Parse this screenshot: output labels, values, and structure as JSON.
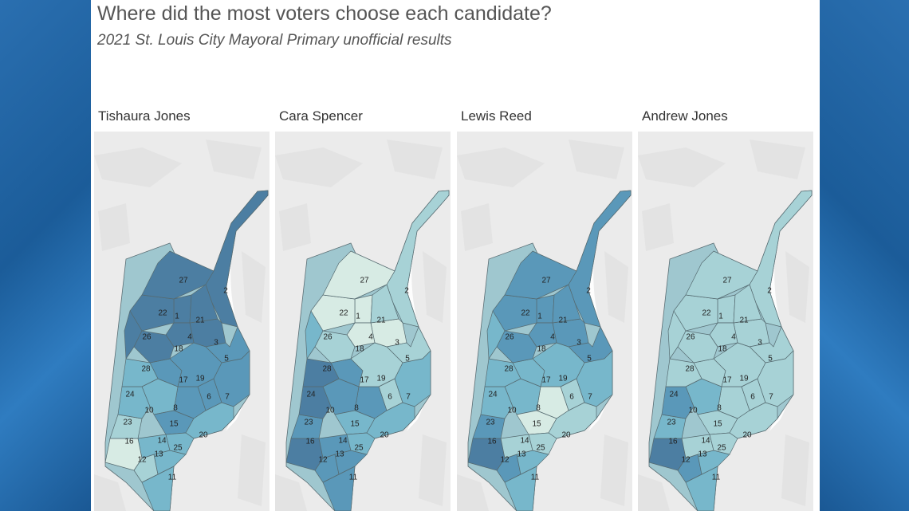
{
  "title": "Where did the most voters choose each candidate?",
  "subtitle": "2021 St. Louis City Mayoral Primary unofficial results",
  "palette": [
    "#d7ebe4",
    "#a7d2d6",
    "#77b7cb",
    "#5a98b9",
    "#4c7ea2"
  ],
  "ward_labels": [
    "1",
    "2",
    "3",
    "4",
    "5",
    "6",
    "7",
    "8",
    "10",
    "11",
    "12",
    "13",
    "14",
    "15",
    "16",
    "17",
    "18",
    "19",
    "20",
    "21",
    "22",
    "23",
    "24",
    "25",
    "26",
    "27",
    "28"
  ],
  "candidates": [
    {
      "name": "Tishaura Jones",
      "levels": {
        "1": 4,
        "2": 4,
        "3": 4,
        "4": 4,
        "5": 3,
        "6": 3,
        "7": 3,
        "8": 3,
        "10": 2,
        "11": 2,
        "12": 1,
        "13": 2,
        "14": 2,
        "15": 3,
        "16": 0,
        "17": 3,
        "18": 4,
        "19": 3,
        "20": 2,
        "21": 4,
        "22": 4,
        "23": 1,
        "24": 2,
        "25": 2,
        "26": 4,
        "27": 4,
        "28": 2
      }
    },
    {
      "name": "Cara Spencer",
      "levels": {
        "1": 0,
        "2": 1,
        "3": 0,
        "4": 0,
        "5": 1,
        "6": 1,
        "7": 2,
        "8": 3,
        "10": 3,
        "11": 3,
        "12": 3,
        "13": 3,
        "14": 3,
        "15": 2,
        "16": 4,
        "17": 3,
        "18": 1,
        "19": 1,
        "20": 2,
        "21": 1,
        "22": 0,
        "23": 3,
        "24": 4,
        "25": 2,
        "26": 2,
        "27": 0,
        "28": 4
      }
    },
    {
      "name": "Lewis Reed",
      "levels": {
        "1": 3,
        "2": 3,
        "3": 3,
        "4": 3,
        "5": 3,
        "6": 1,
        "7": 2,
        "8": 0,
        "10": 2,
        "11": 2,
        "12": 3,
        "13": 2,
        "14": 1,
        "15": 0,
        "16": 4,
        "17": 2,
        "18": 3,
        "19": 2,
        "20": 1,
        "21": 3,
        "22": 3,
        "23": 3,
        "24": 2,
        "25": 1,
        "26": 2,
        "27": 3,
        "28": 2
      }
    },
    {
      "name": "Andrew Jones",
      "levels": {
        "1": 1,
        "2": 1,
        "3": 1,
        "4": 1,
        "5": 1,
        "6": 1,
        "7": 1,
        "8": 1,
        "10": 2,
        "11": 2,
        "12": 3,
        "13": 2,
        "14": 1,
        "15": 1,
        "16": 4,
        "17": 1,
        "18": 1,
        "19": 1,
        "20": 1,
        "21": 1,
        "22": 1,
        "23": 2,
        "24": 3,
        "25": 1,
        "26": 1,
        "27": 1,
        "28": 1
      }
    }
  ]
}
